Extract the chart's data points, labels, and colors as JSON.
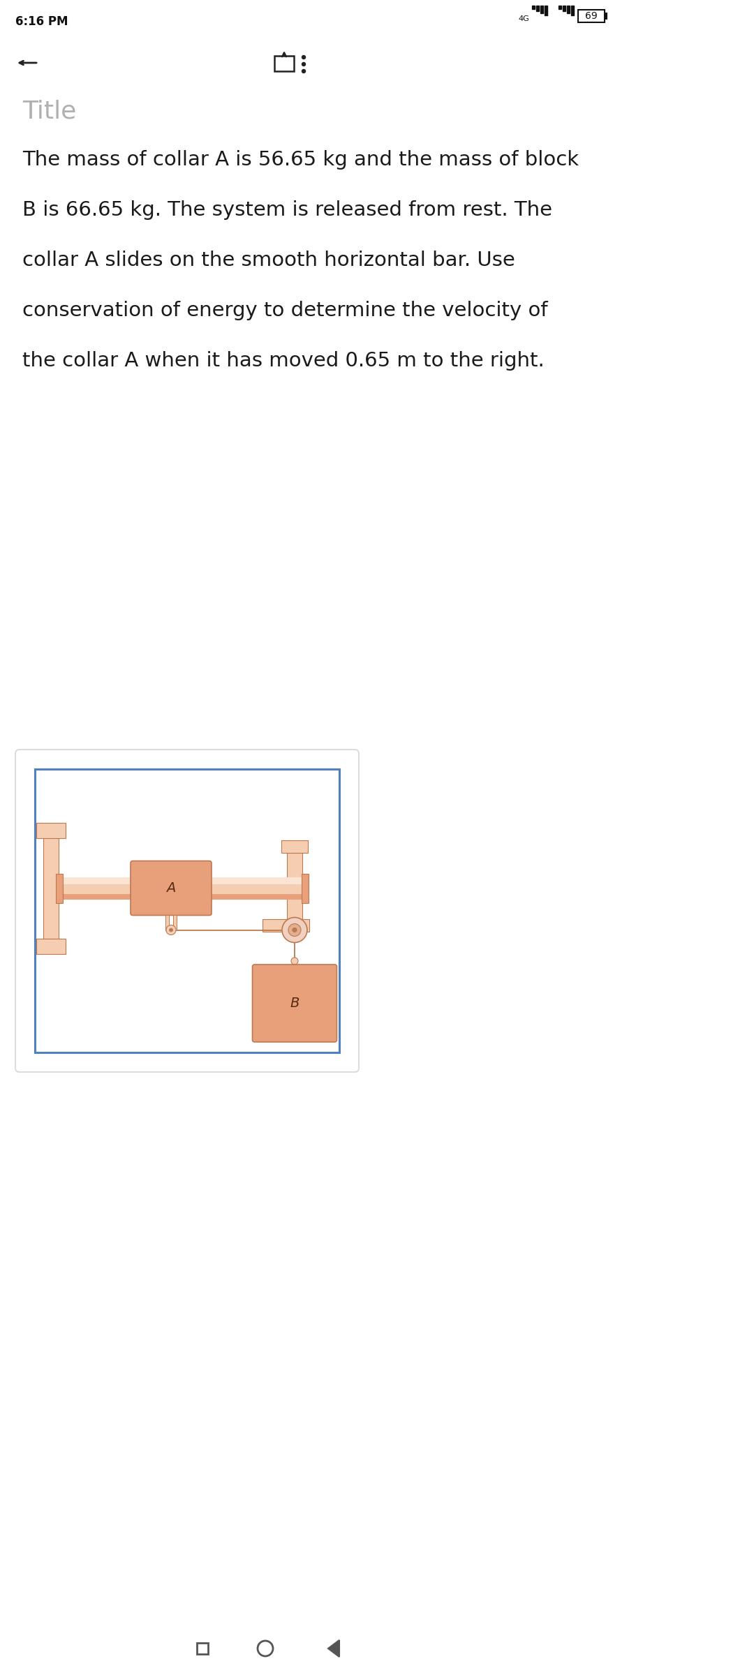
{
  "bg_color": "#ffffff",
  "status_bar_time": "6:16 PM",
  "title_text": "Title",
  "title_color": "#b0b0b0",
  "body_text_lines": [
    "The mass of collar A is 56.65 kg and the mass of block",
    "B is 66.65 kg. The system is released from rest. The",
    "collar A slides on the smooth horizontal bar. Use",
    "conservation of energy to determine the velocity of",
    "the collar A when it has moved 0.65 m to the right."
  ],
  "body_text_color": "#1a1a1a",
  "body_fontsize": 21,
  "diagram_box_border_color": "#5080c0",
  "salmon_color": "#e8a07a",
  "salmon_light": "#f5cdb0",
  "salmon_dark": "#c07850",
  "rope_color": "#b87040"
}
